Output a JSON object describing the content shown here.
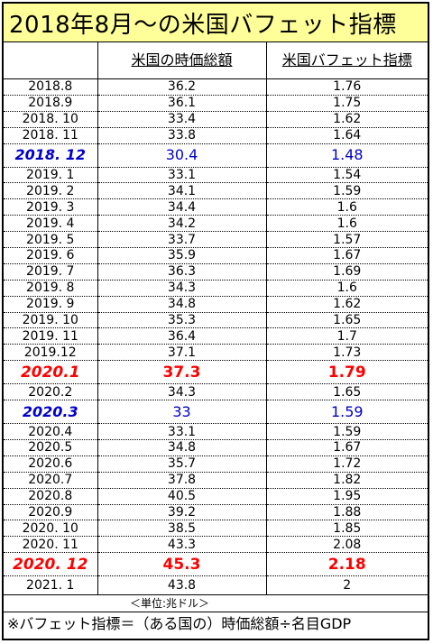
{
  "title": "2018年8月～の米国バフェット指標",
  "headers": {
    "col2": "米国の時価総額",
    "col3": "米国バフェット指標"
  },
  "rows": [
    {
      "date": "2018.8",
      "cap": "36.2",
      "idx": "1.76",
      "style": "normal"
    },
    {
      "date": "2018.9",
      "cap": "36.1",
      "idx": "1.75",
      "style": "normal"
    },
    {
      "date": "2018. 10",
      "cap": "33.4",
      "idx": "1.62",
      "style": "normal"
    },
    {
      "date": "2018. 11",
      "cap": "33.8",
      "idx": "1.64",
      "style": "normal"
    },
    {
      "date": "2018. 12",
      "cap": "30.4",
      "idx": "1.48",
      "style": "blue"
    },
    {
      "date": "2019. 1",
      "cap": "33.1",
      "idx": "1.54",
      "style": "normal"
    },
    {
      "date": "2019. 2",
      "cap": "34.1",
      "idx": "1.59",
      "style": "normal"
    },
    {
      "date": "2019. 3",
      "cap": "34.4",
      "idx": "1.6",
      "style": "normal"
    },
    {
      "date": "2019. 4",
      "cap": "34.2",
      "idx": "1.6",
      "style": "normal"
    },
    {
      "date": "2019. 5",
      "cap": "33.7",
      "idx": "1.57",
      "style": "normal"
    },
    {
      "date": "2019. 6",
      "cap": "35.9",
      "idx": "1.67",
      "style": "normal"
    },
    {
      "date": "2019. 7",
      "cap": "36.3",
      "idx": "1.69",
      "style": "normal"
    },
    {
      "date": "2019. 8",
      "cap": "34.3",
      "idx": "1.6",
      "style": "normal"
    },
    {
      "date": "2019. 9",
      "cap": "34.8",
      "idx": "1.62",
      "style": "normal"
    },
    {
      "date": "2019. 10",
      "cap": "35.3",
      "idx": "1.65",
      "style": "normal"
    },
    {
      "date": "2019. 11",
      "cap": "36.4",
      "idx": "1.7",
      "style": "normal"
    },
    {
      "date": "2019.12",
      "cap": "37.1",
      "idx": "1.73",
      "style": "normal"
    },
    {
      "date": "2020.1",
      "cap": "37.3",
      "idx": "1.79",
      "style": "red"
    },
    {
      "date": "2020.2",
      "cap": "34.3",
      "idx": "1.65",
      "style": "normal"
    },
    {
      "date": "2020.3",
      "cap": "33",
      "idx": "1.59",
      "style": "blue"
    },
    {
      "date": "2020.4",
      "cap": "33.1",
      "idx": "1.59",
      "style": "normal"
    },
    {
      "date": "2020.5",
      "cap": "34.8",
      "idx": "1.67",
      "style": "normal"
    },
    {
      "date": "2020.6",
      "cap": "35.7",
      "idx": "1.72",
      "style": "normal"
    },
    {
      "date": "2020.7",
      "cap": "37.8",
      "idx": "1.82",
      "style": "normal"
    },
    {
      "date": "2020.8",
      "cap": "40.5",
      "idx": "1.95",
      "style": "normal"
    },
    {
      "date": "2020.9",
      "cap": "39.2",
      "idx": "1.88",
      "style": "normal"
    },
    {
      "date": "2020. 10",
      "cap": "38.5",
      "idx": "1.85",
      "style": "normal"
    },
    {
      "date": "2020. 11",
      "cap": "43.3",
      "idx": "2.08",
      "style": "normal"
    },
    {
      "date": "2020. 12",
      "cap": "45.3",
      "idx": "2.18",
      "style": "red"
    },
    {
      "date": "2021. 1",
      "cap": "43.8",
      "idx": "2",
      "style": "normal"
    }
  ],
  "unit": "＜単位:兆ドル＞",
  "note": "※バフェット指標＝（ある国の）時価総額÷名目GDP",
  "colors": {
    "title_bg": "#ffff99",
    "blue": "#0000cc",
    "red": "#ff0000"
  }
}
